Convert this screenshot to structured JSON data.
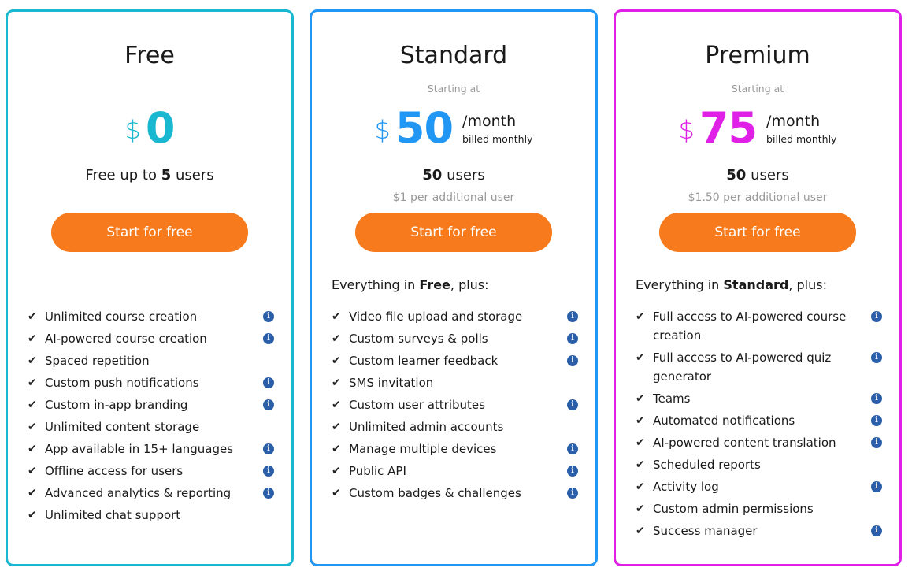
{
  "colors": {
    "free": "#1ab8d0",
    "standard": "#2196f3",
    "premium": "#e020e6",
    "button": "#f77b1c",
    "info": "#2a5ea8"
  },
  "plans": [
    {
      "title": "Free",
      "currency": "$",
      "amount": "0",
      "users_prefix": "Free up to ",
      "users_count": "5",
      "users_suffix": " users",
      "button": "Start for free",
      "features": [
        {
          "text": "Unlimited course creation",
          "info": true
        },
        {
          "text": "AI-powered course creation",
          "info": true
        },
        {
          "text": "Spaced repetition",
          "info": false
        },
        {
          "text": "Custom push notifications",
          "info": true
        },
        {
          "text": "Custom in-app branding",
          "info": true
        },
        {
          "text": "Unlimited content storage",
          "info": false
        },
        {
          "text": "App available in 15+ languages",
          "info": true
        },
        {
          "text": "Offline access for users",
          "info": true
        },
        {
          "text": "Advanced analytics & reporting",
          "info": true
        },
        {
          "text": "Unlimited chat support",
          "info": false
        }
      ]
    },
    {
      "title": "Standard",
      "starting": "Starting at",
      "currency": "$",
      "amount": "50",
      "period": "/month",
      "billing": "billed monthly",
      "users_count": "50",
      "users_suffix": " users",
      "extra": "$1 per additional user",
      "button": "Start for free",
      "intro_prefix": "Everything in ",
      "intro_bold": "Free",
      "intro_suffix": ", plus:",
      "features": [
        {
          "text": "Video file upload and storage",
          "info": true
        },
        {
          "text": "Custom surveys & polls",
          "info": true
        },
        {
          "text": "Custom learner feedback",
          "info": true
        },
        {
          "text": "SMS invitation",
          "info": false
        },
        {
          "text": "Custom user attributes",
          "info": true
        },
        {
          "text": "Unlimited admin accounts",
          "info": false
        },
        {
          "text": "Manage multiple devices",
          "info": true
        },
        {
          "text": "Public API",
          "info": true
        },
        {
          "text": "Custom badges & challenges",
          "info": true
        }
      ]
    },
    {
      "title": "Premium",
      "starting": "Starting at",
      "currency": "$",
      "amount": "75",
      "period": "/month",
      "billing": "billed monthly",
      "users_count": "50",
      "users_suffix": " users",
      "extra": "$1.50 per additional user",
      "button": "Start for free",
      "intro_prefix": "Everything in ",
      "intro_bold": "Standard",
      "intro_suffix": ", plus:",
      "features": [
        {
          "text": "Full access to AI-powered course creation",
          "info": true
        },
        {
          "text": "Full access to AI-powered quiz generator",
          "info": true
        },
        {
          "text": "Teams",
          "info": true
        },
        {
          "text": "Automated notifications",
          "info": true
        },
        {
          "text": "AI-powered content translation",
          "info": true
        },
        {
          "text": "Scheduled reports",
          "info": false
        },
        {
          "text": "Activity log",
          "info": true
        },
        {
          "text": "Custom admin permissions",
          "info": false
        },
        {
          "text": "Success manager",
          "info": true
        }
      ]
    }
  ]
}
